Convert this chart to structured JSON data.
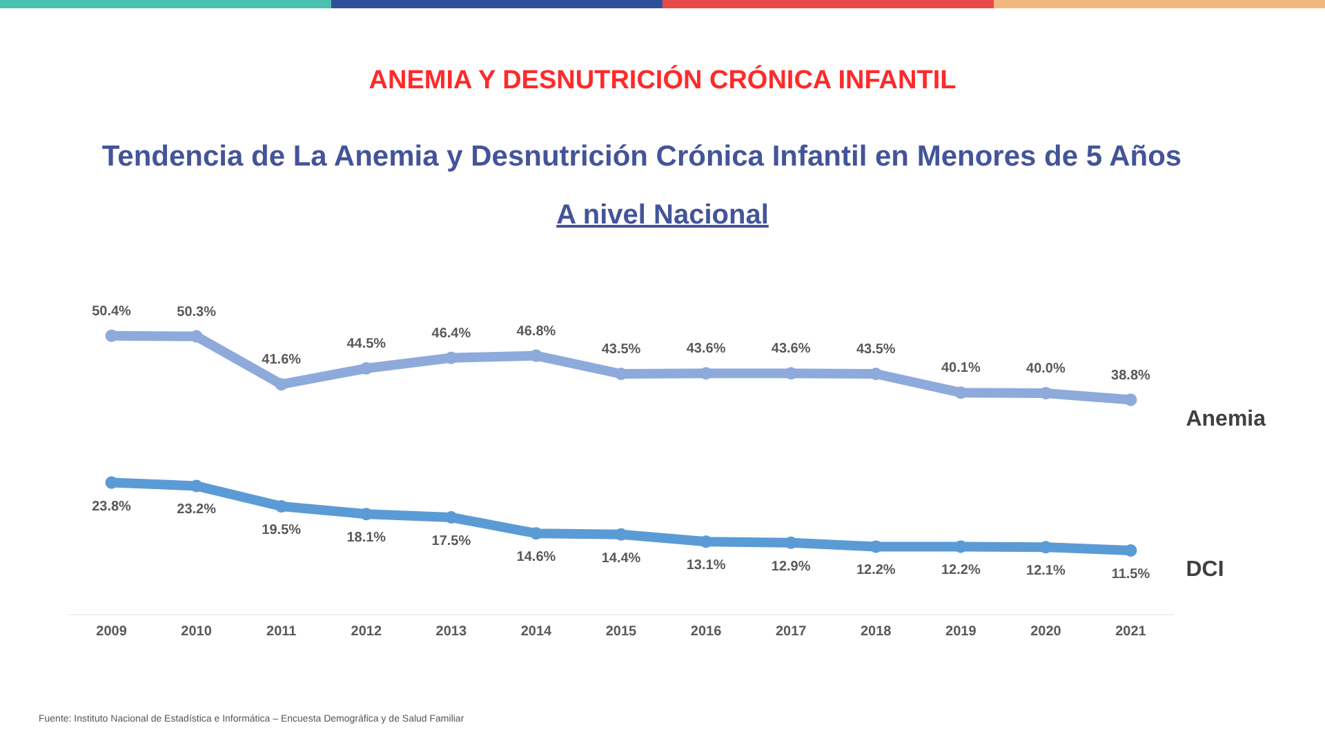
{
  "chart_data": {
    "type": "line",
    "title": "Tendencia de La Anemia y Desnutrición Crónica Infantil en Menores de 5 Años",
    "subtitle": "A nivel Nacional",
    "annotations": [
      "ANEMIA Y DESNUTRICIÓN CRÓNICA INFANTIL",
      "Fuente: Instituto Nacional de Estadística e Informática – Encuesta Demográfica y de Salud Familiar"
    ],
    "categories": [
      "2009",
      "2010",
      "2011",
      "2012",
      "2013",
      "2014",
      "2015",
      "2016",
      "2017",
      "2018",
      "2019",
      "2020",
      "2021"
    ],
    "series": [
      {
        "name": "Anemia",
        "color": "#8eaadb",
        "values": [
          50.4,
          50.3,
          41.6,
          44.5,
          46.4,
          46.8,
          43.5,
          43.6,
          43.6,
          43.5,
          40.1,
          40.0,
          38.8
        ],
        "value_labels": [
          "50.4%",
          "50.3%",
          "41.6%",
          "44.5%",
          "46.4%",
          "46.8%",
          "43.5%",
          "43.6%",
          "43.6%",
          "43.5%",
          "40.1%",
          "40.0%",
          "38.8%"
        ]
      },
      {
        "name": "DCI",
        "color": "#5b9bd5",
        "values": [
          23.8,
          23.2,
          19.5,
          18.1,
          17.5,
          14.6,
          14.4,
          13.1,
          12.9,
          12.2,
          12.2,
          12.1,
          11.5
        ],
        "value_labels": [
          "23.8%",
          "23.2%",
          "19.5%",
          "18.1%",
          "17.5%",
          "14.6%",
          "14.4%",
          "13.1%",
          "12.9%",
          "12.2%",
          "12.2%",
          "12.1%",
          "11.5%"
        ]
      }
    ],
    "marker": "circle",
    "line_style": "solid"
  }
}
